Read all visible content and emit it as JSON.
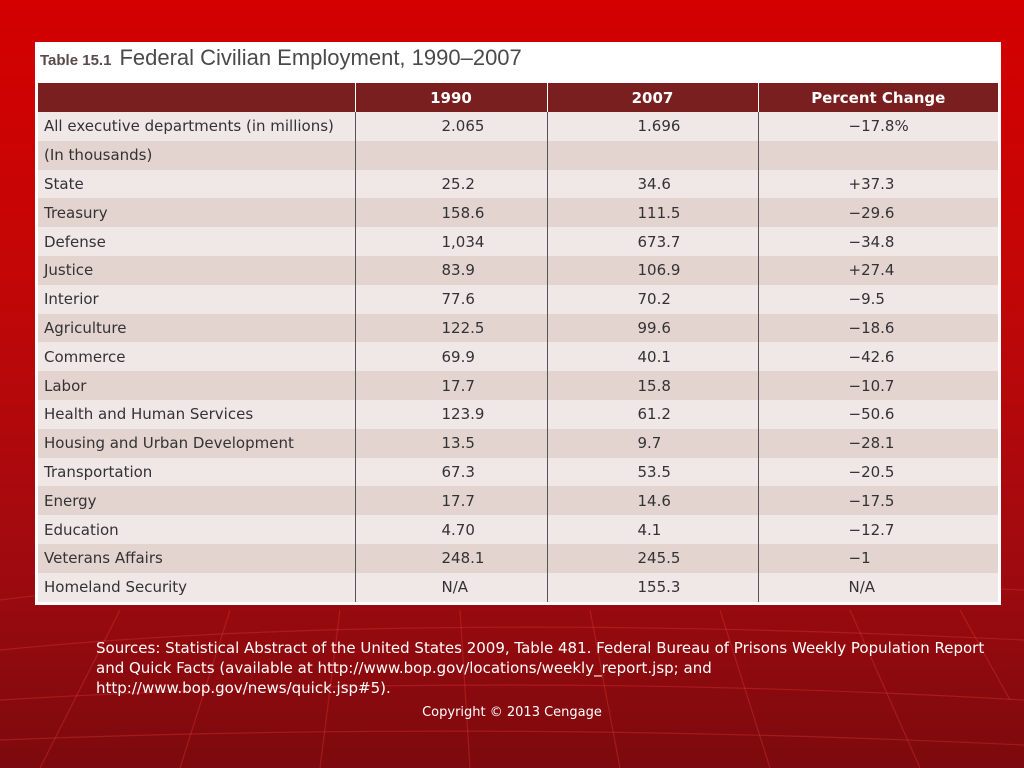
{
  "table": {
    "number": "Table 15.1",
    "title": "Federal Civilian Employment, 1990–2007",
    "headers": [
      "",
      "1990",
      "2007",
      "Percent Change"
    ],
    "rows": [
      [
        "All executive departments (in millions)",
        "2.065",
        "1.696",
        "−17.8%"
      ],
      [
        "(In thousands)",
        "",
        "",
        ""
      ],
      [
        "State",
        "25.2",
        "34.6",
        "+37.3"
      ],
      [
        "Treasury",
        "158.6",
        "111.5",
        "−29.6"
      ],
      [
        "Defense",
        "1,034",
        "673.7",
        "−34.8"
      ],
      [
        "Justice",
        "83.9",
        "106.9",
        "+27.4"
      ],
      [
        "Interior",
        "77.6",
        "70.2",
        "−9.5"
      ],
      [
        "Agriculture",
        "122.5",
        "99.6",
        "−18.6"
      ],
      [
        "Commerce",
        "69.9",
        "40.1",
        "−42.6"
      ],
      [
        "Labor",
        "17.7",
        "15.8",
        "−10.7"
      ],
      [
        "Health and Human Services",
        "123.9",
        "61.2",
        "−50.6"
      ],
      [
        "Housing and Urban Development",
        "13.5",
        "9.7",
        "−28.1"
      ],
      [
        "Transportation",
        "67.3",
        "53.5",
        "−20.5"
      ],
      [
        "Energy",
        "17.7",
        "14.6",
        "−17.5"
      ],
      [
        "Education",
        "4.70",
        "4.1",
        "−12.7"
      ],
      [
        "Veterans Affairs",
        "248.1",
        "245.5",
        "−1"
      ],
      [
        "Homeland Security",
        "N/A",
        "155.3",
        "N/A"
      ]
    ]
  },
  "sources": "Sources: Statistical Abstract of the United States 2009, Table 481.  Federal Bureau of Prisons Weekly Population Report and Quick Facts (available at http://www.bop.gov/locations/weekly_report.jsp; and http://www.bop.gov/news/quick.jsp#5).",
  "copyright": "Copyright © 2013 Cengage",
  "colors": {
    "header_bg": "#7a1f1f",
    "row_light": "#f0e8e6",
    "row_dark": "#e3d4d0",
    "background": "#c40606"
  }
}
